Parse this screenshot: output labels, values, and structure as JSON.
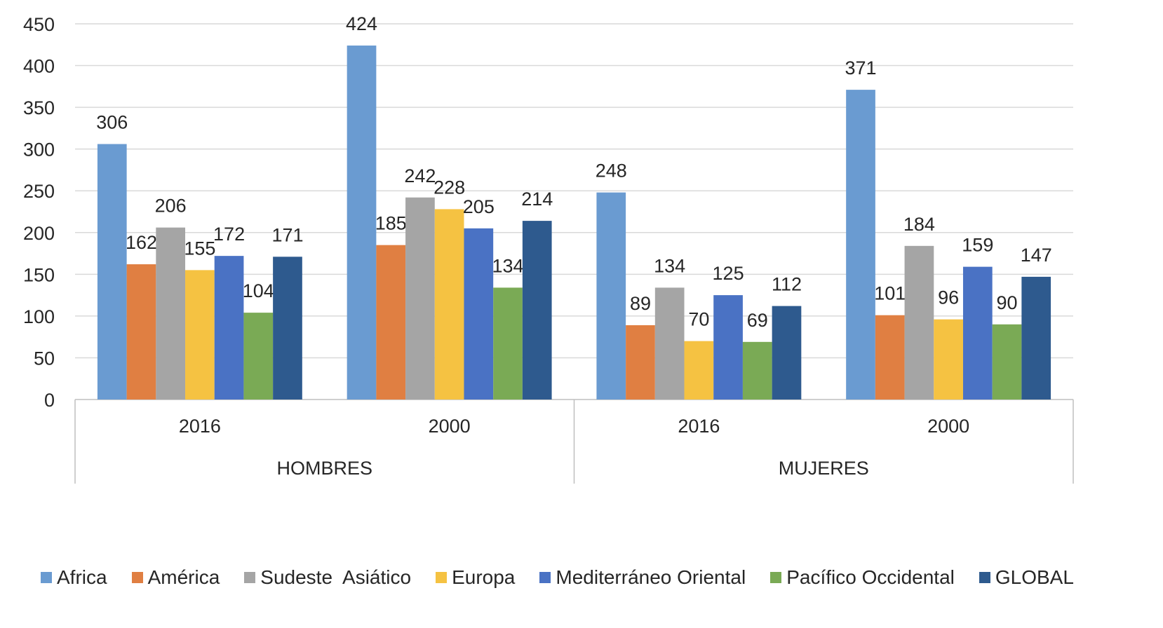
{
  "chart_data": {
    "type": "bar",
    "categories": [
      {
        "group": "HOMBRES",
        "year": "2016"
      },
      {
        "group": "HOMBRES",
        "year": "2000"
      },
      {
        "group": "MUJERES",
        "year": "2016"
      },
      {
        "group": "MUJERES",
        "year": "2000"
      }
    ],
    "category_labels": [
      "2016",
      "2000",
      "2016",
      "2000"
    ],
    "group_labels": [
      "HOMBRES",
      "MUJERES"
    ],
    "series": [
      {
        "name": "Africa",
        "color": "#6a9bd1",
        "values": [
          306,
          424,
          248,
          371
        ]
      },
      {
        "name": "América",
        "color": "#e07f42",
        "values": [
          162,
          185,
          89,
          101
        ]
      },
      {
        "name": "Sudeste  Asiático",
        "color": "#a5a5a5",
        "values": [
          206,
          242,
          134,
          184
        ]
      },
      {
        "name": "Europa",
        "color": "#f5c242",
        "values": [
          155,
          228,
          70,
          96
        ]
      },
      {
        "name": "Mediterráneo Oriental",
        "color": "#4a72c4",
        "values": [
          172,
          205,
          125,
          159
        ]
      },
      {
        "name": "Pacífico Occidental",
        "color": "#7aaa55",
        "values": [
          104,
          134,
          69,
          90
        ]
      },
      {
        "name": "GLOBAL",
        "color": "#2e5a8e",
        "values": [
          171,
          214,
          112,
          147
        ]
      }
    ],
    "ylim": [
      0,
      450
    ],
    "yticks": [
      "0",
      "50",
      "100",
      "150",
      "200",
      "250",
      "300",
      "350",
      "400",
      "450"
    ],
    "grid": true,
    "legend_position": "bottom",
    "data_labels": true
  }
}
